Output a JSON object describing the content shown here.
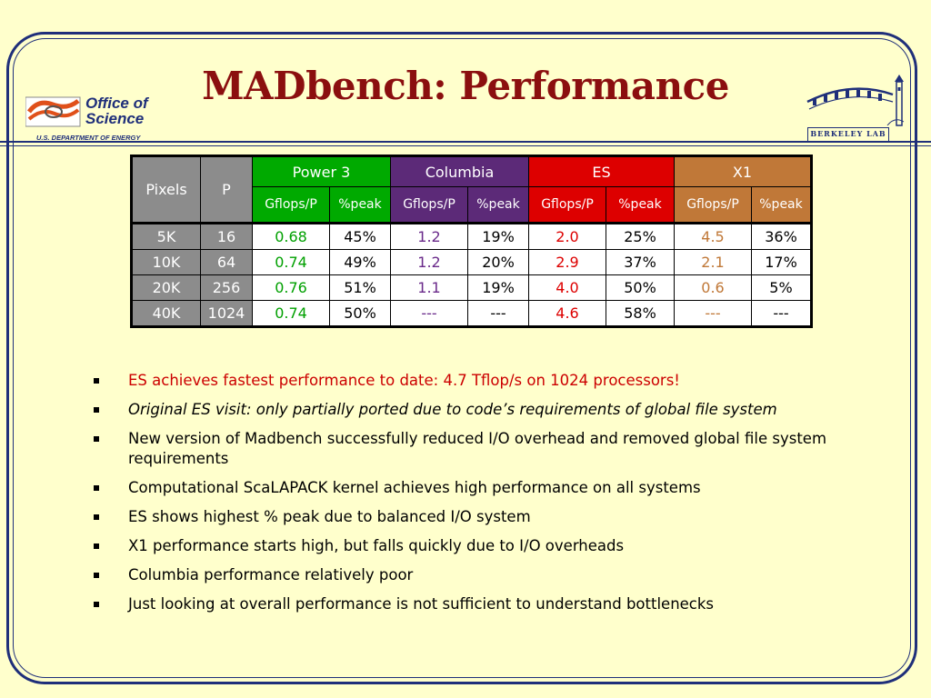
{
  "title": "MADbench: Performance",
  "logo_left": {
    "line1": "Office of",
    "line2": "Science",
    "sub": "U.S. DEPARTMENT OF ENERGY"
  },
  "logo_right": {
    "label": "BERKELEY LAB"
  },
  "table": {
    "col_pixels": "Pixels",
    "col_p": "P",
    "systems": [
      "Power 3",
      "Columbia",
      "ES",
      "X1"
    ],
    "sub_headers": [
      "Gflops/P",
      "%peak",
      "Gflops/P",
      "%peak",
      "Gflops/P",
      "%peak",
      "Gflops/P",
      "%peak"
    ],
    "rows": [
      {
        "pixels": "5K",
        "p": "16",
        "cells": [
          "0.68",
          "45%",
          "1.2",
          "19%",
          "2.0",
          "25%",
          "4.5",
          "36%"
        ]
      },
      {
        "pixels": "10K",
        "p": "64",
        "cells": [
          "0.74",
          "49%",
          "1.2",
          "20%",
          "2.9",
          "37%",
          "2.1",
          "17%"
        ]
      },
      {
        "pixels": "20K",
        "p": "256",
        "cells": [
          "0.76",
          "51%",
          "1.1",
          "19%",
          "4.0",
          "50%",
          "0.6",
          "5%"
        ]
      },
      {
        "pixels": "40K",
        "p": "1024",
        "cells": [
          "0.74",
          "50%",
          "---",
          "---",
          "4.6",
          "58%",
          "---",
          "---"
        ]
      }
    ]
  },
  "colors": {
    "power3": "#00aa00",
    "columbia": "#5c2a78",
    "es": "#dd0000",
    "x1": "#c07838",
    "title": "#8b0f0f",
    "background": "#ffffcc"
  },
  "bullets": [
    "ES achieves fastest performance to date: 4.7 Tflop/s on 1024 processors!",
    "Original ES visit: only partially ported due to code’s requirements of global file system",
    "New version of Madbench successfully reduced I/O overhead and removed global file system requirements",
    "Computational ScaLAPACK kernel achieves high performance on all systems",
    "ES shows highest % peak due to balanced I/O system",
    "X1 performance starts high, but falls quickly due to I/O overheads",
    "Columbia performance relatively poor",
    "Just looking at overall performance is not sufficient to understand bottlenecks"
  ]
}
